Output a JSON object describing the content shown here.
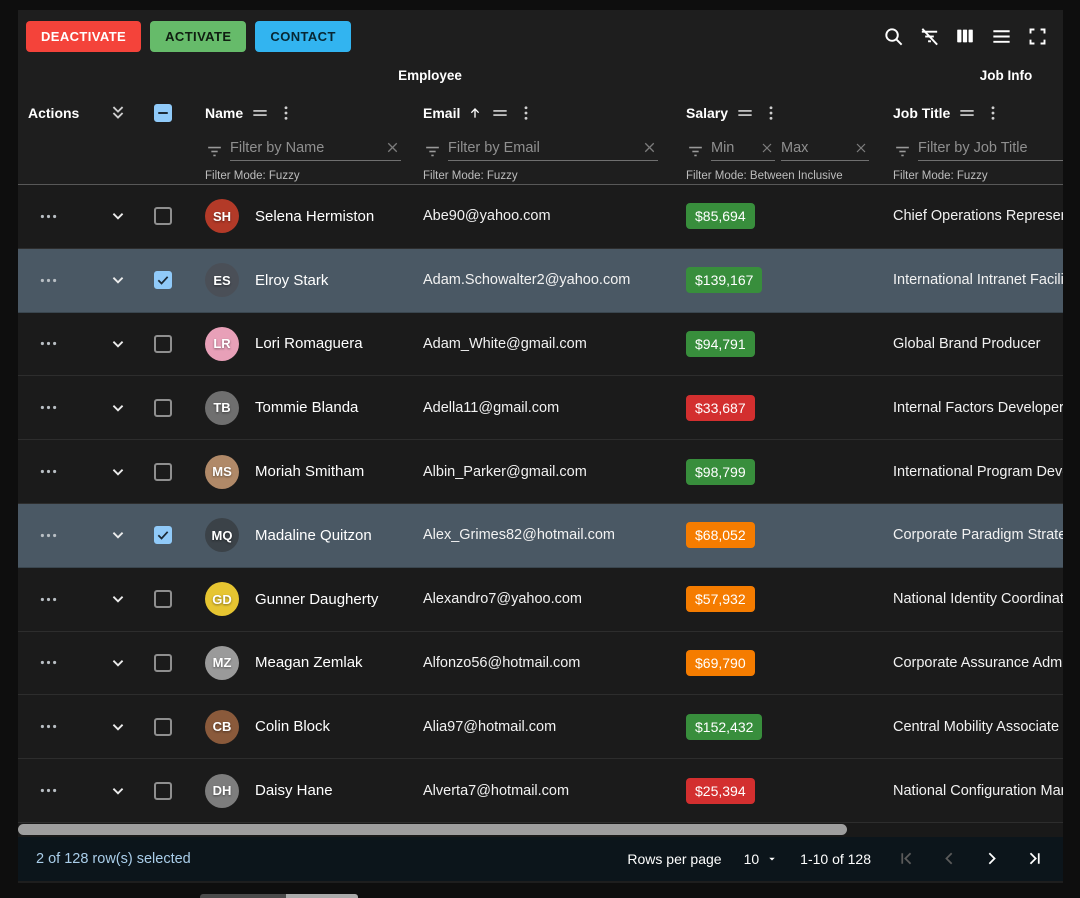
{
  "toolbar": {
    "buttons": [
      {
        "name": "deactivate-button",
        "label": "DEACTIVATE",
        "bg": "#f4433a",
        "fg": "#ffffff"
      },
      {
        "name": "activate-button",
        "label": "ACTIVATE",
        "bg": "#66bb6a",
        "fg": "#0f1d10"
      },
      {
        "name": "contact-button",
        "label": "CONTACT",
        "bg": "#32b4f0",
        "fg": "#072734"
      }
    ],
    "icons": [
      {
        "name": "search-icon"
      },
      {
        "name": "filter-off-icon"
      },
      {
        "name": "show-hide-columns-icon"
      },
      {
        "name": "density-icon"
      },
      {
        "name": "fullscreen-icon"
      }
    ]
  },
  "groups": [
    {
      "label": "Employee"
    },
    {
      "label": "Job Info"
    }
  ],
  "header": {
    "actions_label": "Actions",
    "name": {
      "label": "Name",
      "placeholder": "Filter by Name",
      "mode": "Filter Mode: Fuzzy"
    },
    "email": {
      "label": "Email",
      "sort": "asc",
      "placeholder": "Filter by Email",
      "mode": "Filter Mode: Fuzzy"
    },
    "salary": {
      "label": "Salary",
      "min_placeholder": "Min",
      "max_placeholder": "Max",
      "mode": "Filter Mode: Between Inclusive"
    },
    "job": {
      "label": "Job Title",
      "placeholder": "Filter by Job Title",
      "mode": "Filter Mode: Fuzzy"
    }
  },
  "salary_colors": {
    "high": "#388e3c",
    "mid": "#f57c00",
    "low": "#d32f2f"
  },
  "selected_row_bg": "#4a5864",
  "rows": [
    {
      "name": "Selena Hermiston",
      "initials": "SH",
      "avatar_color": "#b33a28",
      "email": "Abe90@yahoo.com",
      "salary": "$85,694",
      "level": "high",
      "job_title": "Chief Operations Representative",
      "selected": false
    },
    {
      "name": "Elroy Stark",
      "initials": "ES",
      "avatar_color": "#4a4f57",
      "email": "Adam.Schowalter2@yahoo.com",
      "salary": "$139,167",
      "level": "high",
      "job_title": "International Intranet Facilitator",
      "selected": true
    },
    {
      "name": "Lori Romaguera",
      "initials": "LR",
      "avatar_color": "#e8a0b8",
      "email": "Adam_White@gmail.com",
      "salary": "$94,791",
      "level": "high",
      "job_title": "Global Brand Producer",
      "selected": false
    },
    {
      "name": "Tommie Blanda",
      "initials": "TB",
      "avatar_color": "#6f6f6f",
      "email": "Adella11@gmail.com",
      "salary": "$33,687",
      "level": "low",
      "job_title": "Internal Factors Developer",
      "selected": false
    },
    {
      "name": "Moriah Smitham",
      "initials": "MS",
      "avatar_color": "#b08968",
      "email": "Albin_Parker@gmail.com",
      "salary": "$98,799",
      "level": "high",
      "job_title": "International Program Developer",
      "selected": false
    },
    {
      "name": "Madaline Quitzon",
      "initials": "MQ",
      "avatar_color": "#3b4248",
      "email": "Alex_Grimes82@hotmail.com",
      "salary": "$68,052",
      "level": "mid",
      "job_title": "Corporate Paradigm Strategist",
      "selected": true
    },
    {
      "name": "Gunner Daugherty",
      "initials": "GD",
      "avatar_color": "#e6c531",
      "email": "Alexandro7@yahoo.com",
      "salary": "$57,932",
      "level": "mid",
      "job_title": "National Identity Coordinator",
      "selected": false
    },
    {
      "name": "Meagan Zemlak",
      "initials": "MZ",
      "avatar_color": "#9a9a9a",
      "email": "Alfonzo56@hotmail.com",
      "salary": "$69,790",
      "level": "mid",
      "job_title": "Corporate Assurance Administrator",
      "selected": false
    },
    {
      "name": "Colin Block",
      "initials": "CB",
      "avatar_color": "#8a5a3b",
      "email": "Alia97@hotmail.com",
      "salary": "$152,432",
      "level": "high",
      "job_title": "Central Mobility Associate",
      "selected": false
    },
    {
      "name": "Daisy Hane",
      "initials": "DH",
      "avatar_color": "#7d7d7d",
      "email": "Alverta7@hotmail.com",
      "salary": "$25,394",
      "level": "low",
      "job_title": "National Configuration Manager",
      "selected": false
    }
  ],
  "footer": {
    "selected_text": "2 of 128 row(s) selected",
    "rows_per_page_label": "Rows per page",
    "rows_per_page_value": "10",
    "range_text": "1-10 of 128",
    "pagination": [
      {
        "name": "first-page-icon",
        "enabled": false
      },
      {
        "name": "previous-page-icon",
        "enabled": false
      },
      {
        "name": "next-page-icon",
        "enabled": true
      },
      {
        "name": "last-page-icon",
        "enabled": true
      }
    ]
  }
}
